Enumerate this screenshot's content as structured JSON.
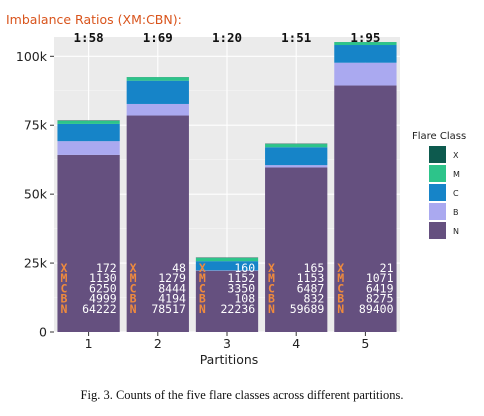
{
  "chart_data": {
    "type": "bar",
    "stacked": true,
    "annotation_title": "Imbalance Ratios (XM:CBN):",
    "ratios": [
      "1:58",
      "1:69",
      "1:20",
      "1:51",
      "1:95"
    ],
    "categories": [
      "1",
      "2",
      "3",
      "4",
      "5"
    ],
    "xlabel": "Partitions",
    "ylabel": "",
    "ylim": [
      0,
      107000
    ],
    "yticks": [
      0,
      25000,
      50000,
      75000,
      100000
    ],
    "ytick_labels": [
      "0",
      "25k",
      "50k",
      "75k",
      "100k"
    ],
    "grid": true,
    "legend": {
      "title": "Flare Class",
      "placement": "right"
    },
    "series": [
      {
        "name": "N",
        "color": "#65507f",
        "values": [
          64222,
          78517,
          22236,
          59689,
          89400
        ]
      },
      {
        "name": "B",
        "color": "#aaa9f0",
        "values": [
          4999,
          4194,
          108,
          832,
          8275
        ]
      },
      {
        "name": "C",
        "color": "#1684c8",
        "values": [
          6250,
          8444,
          3350,
          6487,
          6419
        ]
      },
      {
        "name": "M",
        "color": "#2dc48a",
        "values": [
          1130,
          1279,
          1152,
          1153,
          1071
        ]
      },
      {
        "name": "X",
        "color": "#0d5a4e",
        "values": [
          172,
          48,
          160,
          165,
          21
        ]
      }
    ],
    "legend_order": [
      "X",
      "M",
      "C",
      "B",
      "N"
    ]
  },
  "caption": "Fig. 3.   Counts of the five flare classes across different partitions.",
  "colors": {
    "panel": "#ebebeb",
    "grid_major": "#ffffff",
    "label_letters": "#ee8a3e",
    "title": "#d9541c"
  }
}
